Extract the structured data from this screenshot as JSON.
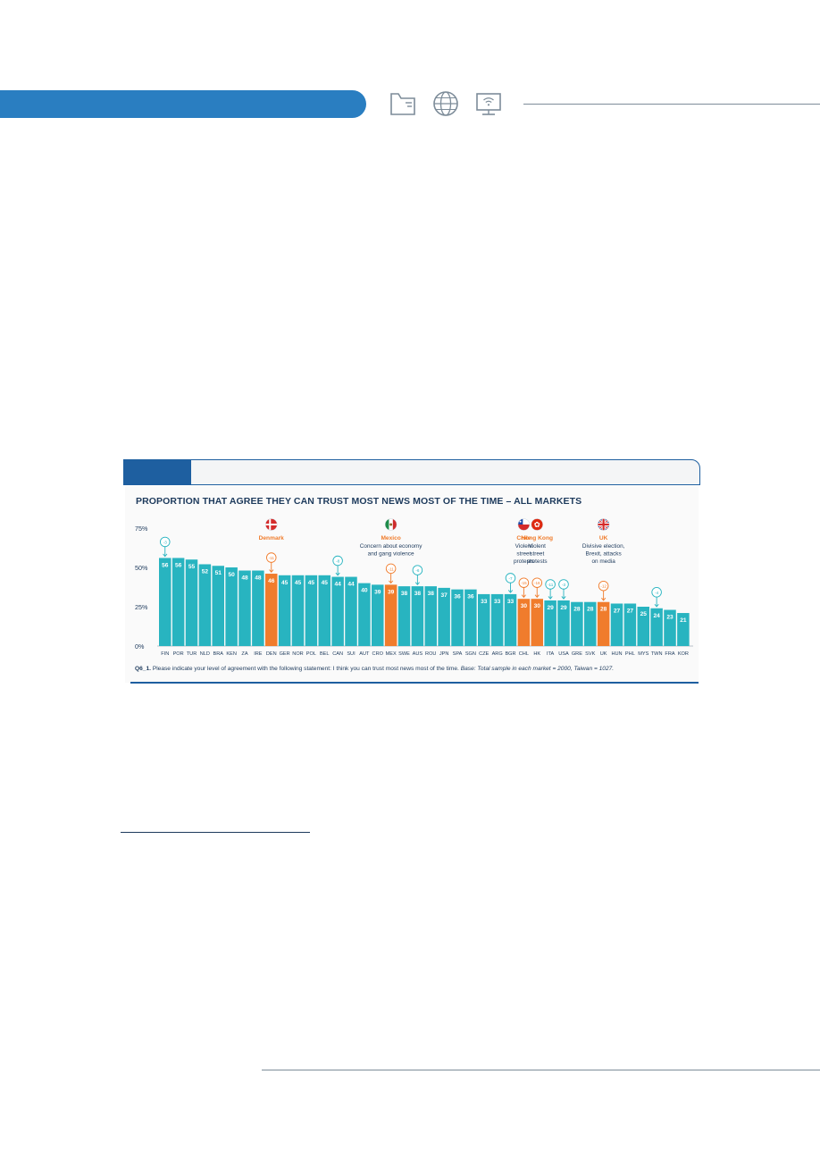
{
  "chart_data": {
    "type": "bar",
    "title": "PROPORTION THAT AGREE THEY CAN TRUST MOST NEWS MOST OF THE TIME – ALL MARKETS",
    "categories": [
      "FIN",
      "POR",
      "TUR",
      "NLD",
      "BRA",
      "KEN",
      "ZA",
      "IRE",
      "DEN",
      "GER",
      "NOR",
      "POL",
      "BEL",
      "CAN",
      "SUI",
      "AUT",
      "CRO",
      "MEX",
      "SWE",
      "AUS",
      "ROU",
      "JPN",
      "SPA",
      "SGN",
      "CZE",
      "ARG",
      "BGR",
      "CHL",
      "HK",
      "ITA",
      "USA",
      "GRE",
      "SVK",
      "UK",
      "HUN",
      "PHL",
      "MYS",
      "TWN",
      "FRA",
      "KOR"
    ],
    "values": [
      56,
      56,
      55,
      52,
      51,
      50,
      48,
      48,
      46,
      45,
      45,
      45,
      45,
      44,
      44,
      40,
      39,
      39,
      38,
      38,
      38,
      37,
      36,
      36,
      33,
      33,
      33,
      30,
      30,
      29,
      29,
      28,
      28,
      28,
      27,
      27,
      25,
      24,
      23,
      21
    ],
    "highlighted": [
      "DEN",
      "MEX",
      "CHL",
      "HK",
      "UK"
    ],
    "ylim": [
      0,
      75
    ],
    "yticks": [
      "0%",
      "25%",
      "50%",
      "75%"
    ],
    "grid": false,
    "colors": {
      "bar": "#28b4c0",
      "highlight": "#f07c2c",
      "text": "#1d3a5c",
      "accent": "#1e5fa0"
    },
    "changes": [
      {
        "category": "FIN",
        "label": "-3",
        "color": "teal"
      },
      {
        "category": "DEN",
        "label": "-11",
        "color": "orange"
      },
      {
        "category": "CAN",
        "label": "-8",
        "color": "teal"
      },
      {
        "category": "MEX",
        "label": "-11",
        "color": "orange"
      },
      {
        "category": "AUS",
        "label": "-6",
        "color": "teal"
      },
      {
        "category": "BGR",
        "label": "-7",
        "color": "teal"
      },
      {
        "category": "CHL",
        "label": "-15",
        "color": "orange"
      },
      {
        "category": "HK",
        "label": "-16",
        "color": "orange"
      },
      {
        "category": "ITA",
        "label": "-11",
        "color": "teal"
      },
      {
        "category": "USA",
        "label": "-3",
        "color": "teal"
      },
      {
        "category": "UK",
        "label": "-12",
        "color": "orange"
      },
      {
        "category": "TWN",
        "label": "-4",
        "color": "teal"
      }
    ],
    "annotations": [
      {
        "category": "DEN",
        "flag": "denmark-flag-icon",
        "title": "Denmark",
        "lines": []
      },
      {
        "category": "MEX",
        "flag": "mexico-flag-icon",
        "title": "Mexico",
        "lines": [
          "Concern about economy",
          "and gang violence"
        ]
      },
      {
        "category": "CHL",
        "flag": "chile-flag-icon",
        "title": "Chile",
        "lines": [
          "Violent",
          "street",
          "protests"
        ]
      },
      {
        "category": "HK",
        "flag": "hong-kong-flag-icon",
        "title": "Hong Kong",
        "lines": [
          "Violent",
          "street",
          "protests"
        ]
      },
      {
        "category": "UK",
        "flag": "uk-flag-icon",
        "title": "UK",
        "lines": [
          "Divisive election,",
          "Brexit, attacks",
          "on media"
        ]
      }
    ]
  },
  "footnote": {
    "question_id": "Q6_1.",
    "text": "Please indicate your level of agreement with the following statement: I think you can trust most news most of the time.",
    "base": "Base: Total sample in each market = 2000, Taiwan = 1027."
  },
  "header_icons": [
    "folder-icon",
    "globe-icon",
    "wifi-screen-icon"
  ]
}
